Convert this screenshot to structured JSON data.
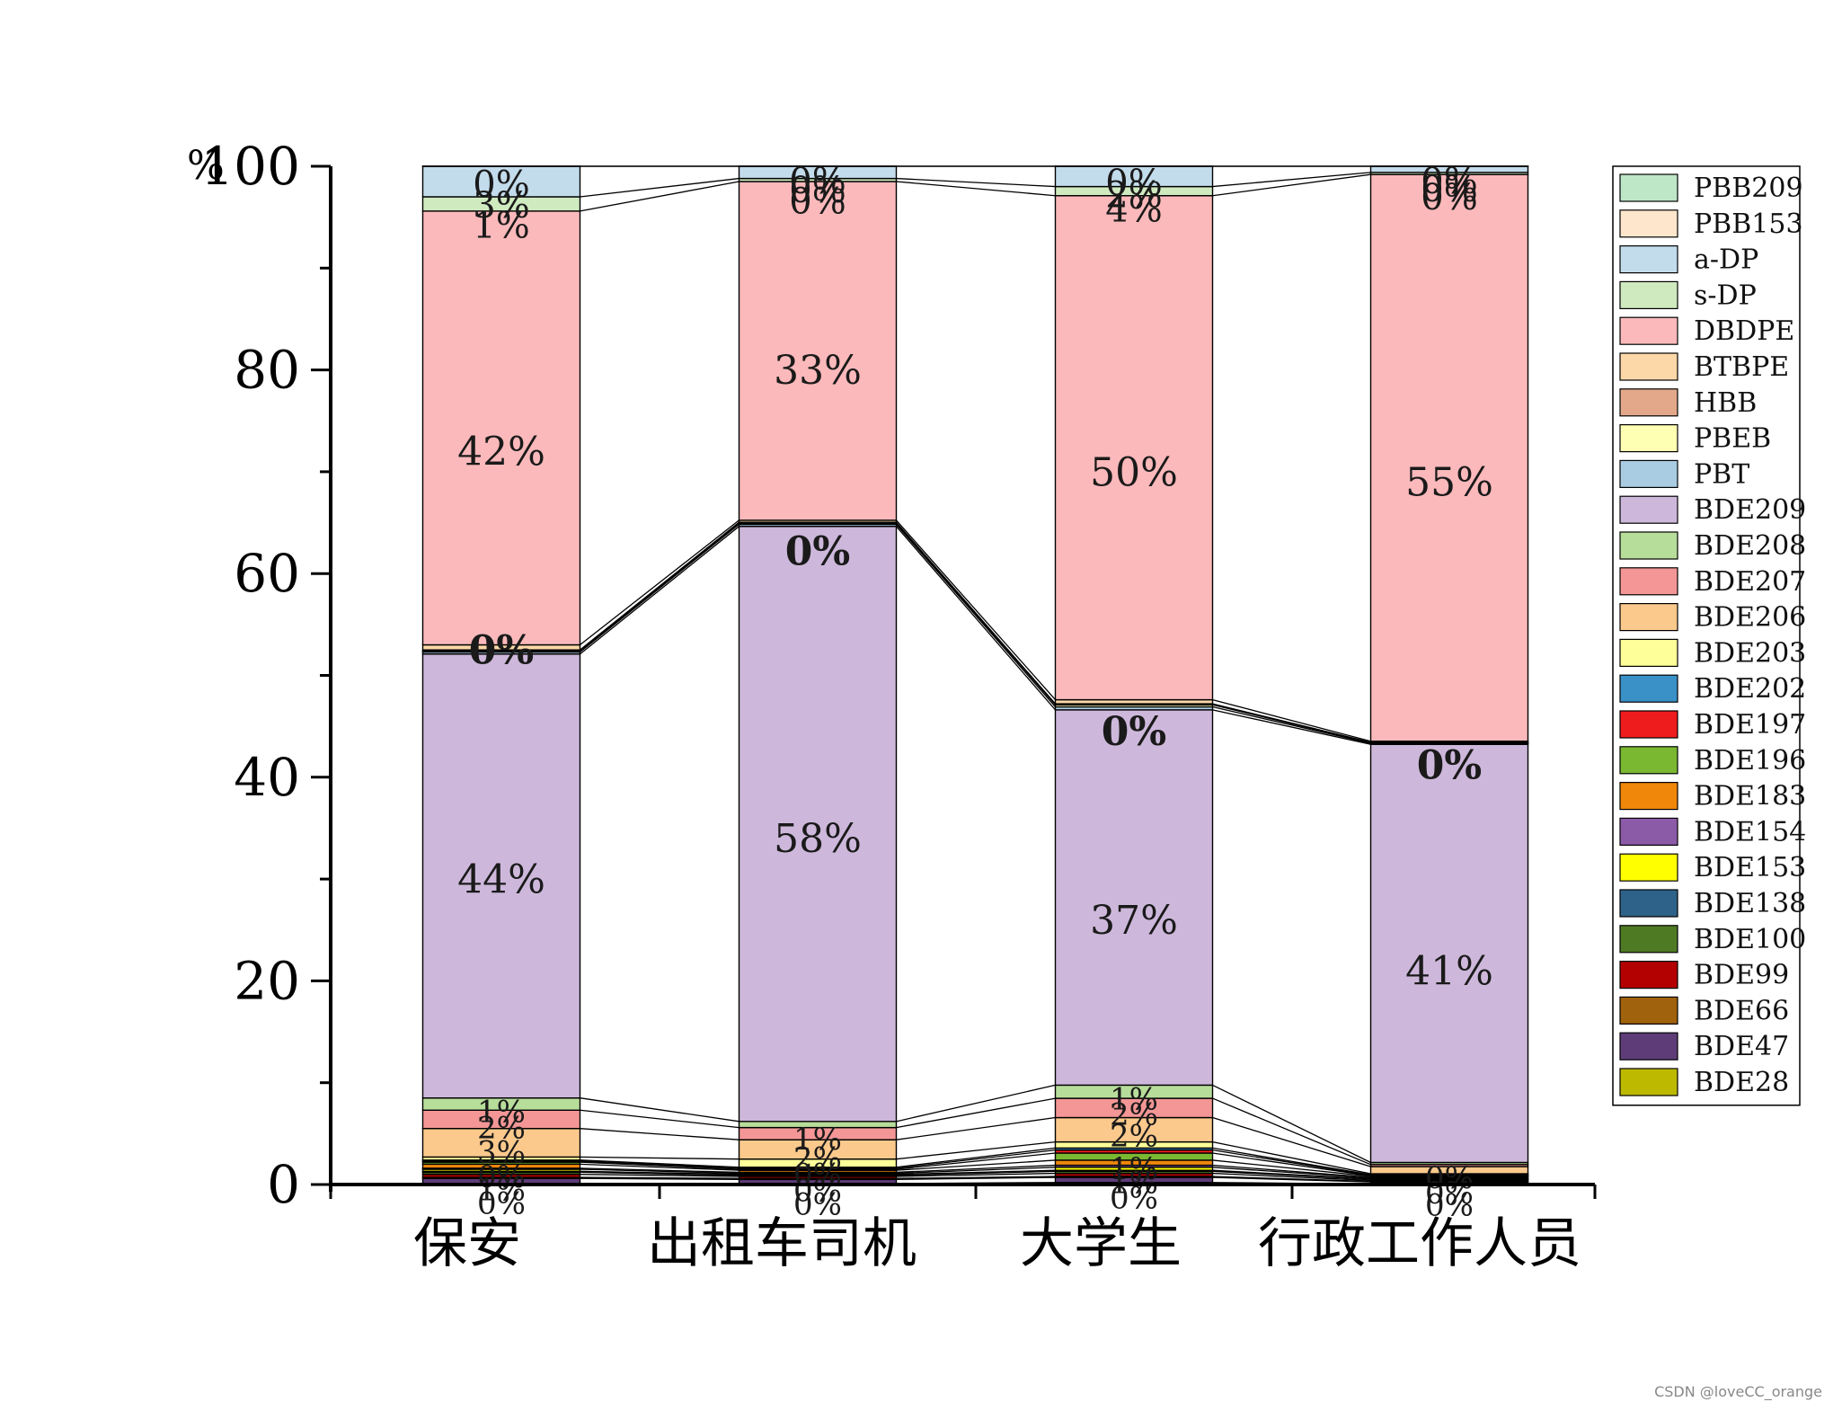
{
  "chart_data": {
    "type": "bar",
    "stacked": true,
    "connectors": true,
    "categories": [
      "保安",
      "出租车司机",
      "大学生",
      "行政工作人员"
    ],
    "ylabel": "%",
    "ylim": [
      0,
      100
    ],
    "yticks": [
      "0",
      "20",
      "40",
      "60",
      "80",
      "100"
    ],
    "legend_position": "right",
    "series": [
      {
        "name": "BDE28",
        "color": "#bcb900",
        "values": [
          0.1,
          0.1,
          0.2,
          0.05
        ]
      },
      {
        "name": "BDE47",
        "color": "#5e3c78",
        "values": [
          0.5,
          0.4,
          0.5,
          0.2
        ]
      },
      {
        "name": "BDE66",
        "color": "#a0620c",
        "values": [
          0.1,
          0.1,
          0.1,
          0.05
        ]
      },
      {
        "name": "BDE99",
        "color": "#b30000",
        "values": [
          0.3,
          0.2,
          0.3,
          0.1
        ]
      },
      {
        "name": "BDE100",
        "color": "#4f7a24",
        "values": [
          0.2,
          0.1,
          0.2,
          0.1
        ]
      },
      {
        "name": "BDE138",
        "color": "#2f6288",
        "values": [
          0.1,
          0.1,
          0.1,
          0.05
        ]
      },
      {
        "name": "BDE153",
        "color": "#ffff00",
        "values": [
          0.2,
          0.1,
          0.3,
          0.1
        ]
      },
      {
        "name": "BDE154",
        "color": "#8c5ba8",
        "values": [
          0.1,
          0.1,
          0.2,
          0.05
        ]
      },
      {
        "name": "BDE183",
        "color": "#f0870b",
        "values": [
          0.4,
          0.2,
          0.5,
          0.1
        ]
      },
      {
        "name": "BDE196",
        "color": "#7ab832",
        "values": [
          0.2,
          0.1,
          0.7,
          0.05
        ]
      },
      {
        "name": "BDE197",
        "color": "#ee1c1c",
        "values": [
          0.1,
          0.1,
          0.3,
          0.05
        ]
      },
      {
        "name": "BDE202",
        "color": "#3a91c8",
        "values": [
          0.1,
          0.1,
          0.2,
          0.05
        ]
      },
      {
        "name": "BDE203",
        "color": "#ffff99",
        "values": [
          0.3,
          0.8,
          0.6,
          0.1
        ]
      },
      {
        "name": "BDE206",
        "color": "#fbc98c",
        "values": [
          2.8,
          1.9,
          2.4,
          0.7
        ]
      },
      {
        "name": "BDE207",
        "color": "#f49696",
        "values": [
          1.8,
          1.2,
          1.9,
          0.2
        ]
      },
      {
        "name": "BDE208",
        "color": "#b7dd9a",
        "values": [
          1.2,
          0.6,
          1.3,
          0.2
        ]
      },
      {
        "name": "BDE209",
        "color": "#cdb8db",
        "values": [
          43.6,
          58.5,
          37.0,
          40.8
        ]
      },
      {
        "name": "PBT",
        "color": "#a9cce3",
        "values": [
          0.2,
          0.2,
          0.3,
          0.1
        ]
      },
      {
        "name": "PBEB",
        "color": "#ffffb3",
        "values": [
          0.1,
          0.1,
          0.2,
          0.05
        ]
      },
      {
        "name": "HBB",
        "color": "#e3a88a",
        "values": [
          0.1,
          0.1,
          0.1,
          0.05
        ]
      },
      {
        "name": "BTBPE",
        "color": "#fcd8a8",
        "values": [
          0.5,
          0.2,
          0.4,
          0.1
        ]
      },
      {
        "name": "DBDPE",
        "color": "#fbb9bb",
        "values": [
          42.6,
          33.3,
          49.7,
          55.3
        ]
      },
      {
        "name": "s-DP",
        "color": "#d0eac0",
        "values": [
          1.4,
          0.3,
          0.9,
          0.2
        ]
      },
      {
        "name": "a-DP",
        "color": "#c3dcec",
        "values": [
          3.0,
          1.2,
          2.0,
          0.6
        ]
      },
      {
        "name": "PBB153",
        "color": "#fde6cc",
        "values": [
          0.0,
          0.0,
          0.0,
          0.0
        ]
      },
      {
        "name": "PBB209",
        "color": "#bde7c7",
        "values": [
          0.0,
          0.0,
          0.0,
          0.0
        ]
      }
    ],
    "segment_labels": [
      [
        {
          "text": "44%",
          "at": 30,
          "size": 44
        },
        {
          "text": "0%",
          "at": 52.5,
          "size": 44,
          "bold": true
        },
        {
          "text": "42%",
          "at": 72,
          "size": 44
        },
        {
          "text": "1%",
          "at": 94.2,
          "size": 40
        },
        {
          "text": "3%",
          "at": 96.2,
          "size": 40
        },
        {
          "text": "0%",
          "at": 98.3,
          "size": 40
        },
        {
          "text": "1%",
          "at": 7.2,
          "size": 34
        },
        {
          "text": "2%",
          "at": 5.6,
          "size": 34
        },
        {
          "text": "3%",
          "at": 3.2,
          "size": 34
        },
        {
          "text": "0%",
          "at": 0.8,
          "size": 34
        },
        {
          "text": "1%",
          "at": -0.5,
          "size": 34
        },
        {
          "text": "0%",
          "at": -1.8,
          "size": 34
        }
      ],
      [
        {
          "text": "58%",
          "at": 34,
          "size": 44
        },
        {
          "text": "0%",
          "at": 62.2,
          "size": 44,
          "bold": true
        },
        {
          "text": "33%",
          "at": 80,
          "size": 44
        },
        {
          "text": "0%",
          "at": 96.6,
          "size": 40
        },
        {
          "text": "0%",
          "at": 97.7,
          "size": 40
        },
        {
          "text": "0%",
          "at": 98.6,
          "size": 40
        },
        {
          "text": "1%",
          "at": 4.5,
          "size": 34
        },
        {
          "text": "2%",
          "at": 2.6,
          "size": 34
        },
        {
          "text": "0%",
          "at": 1.0,
          "size": 34
        },
        {
          "text": "0%",
          "at": -0.6,
          "size": 34
        },
        {
          "text": "0%",
          "at": -1.9,
          "size": 34
        }
      ],
      [
        {
          "text": "37%",
          "at": 26,
          "size": 44
        },
        {
          "text": "0%",
          "at": 44.5,
          "size": 44,
          "bold": true
        },
        {
          "text": "50%",
          "at": 70,
          "size": 44
        },
        {
          "text": "4%",
          "at": 95.8,
          "size": 40
        },
        {
          "text": "2%",
          "at": 97.2,
          "size": 40
        },
        {
          "text": "0%",
          "at": 98.4,
          "size": 40
        },
        {
          "text": "1%",
          "at": 8.4,
          "size": 34
        },
        {
          "text": "2%",
          "at": 6.9,
          "size": 34
        },
        {
          "text": "2%",
          "at": 4.8,
          "size": 34
        },
        {
          "text": "1%",
          "at": 1.6,
          "size": 34
        },
        {
          "text": "1%",
          "at": 0.2,
          "size": 34
        },
        {
          "text": "0%",
          "at": -1.3,
          "size": 34
        }
      ],
      [
        {
          "text": "41%",
          "at": 21,
          "size": 44
        },
        {
          "text": "0%",
          "at": 41.2,
          "size": 44,
          "bold": true
        },
        {
          "text": "55%",
          "at": 69,
          "size": 44
        },
        {
          "text": "0%",
          "at": 97.0,
          "size": 40
        },
        {
          "text": "0%",
          "at": 97.8,
          "size": 40
        },
        {
          "text": "0%",
          "at": 98.6,
          "size": 40
        },
        {
          "text": "0%",
          "at": 0.7,
          "size": 34
        },
        {
          "text": "0%",
          "at": -0.8,
          "size": 34
        },
        {
          "text": "0%",
          "at": -2.0,
          "size": 34
        }
      ]
    ]
  },
  "watermark": "CSDN @loveCC_orange"
}
